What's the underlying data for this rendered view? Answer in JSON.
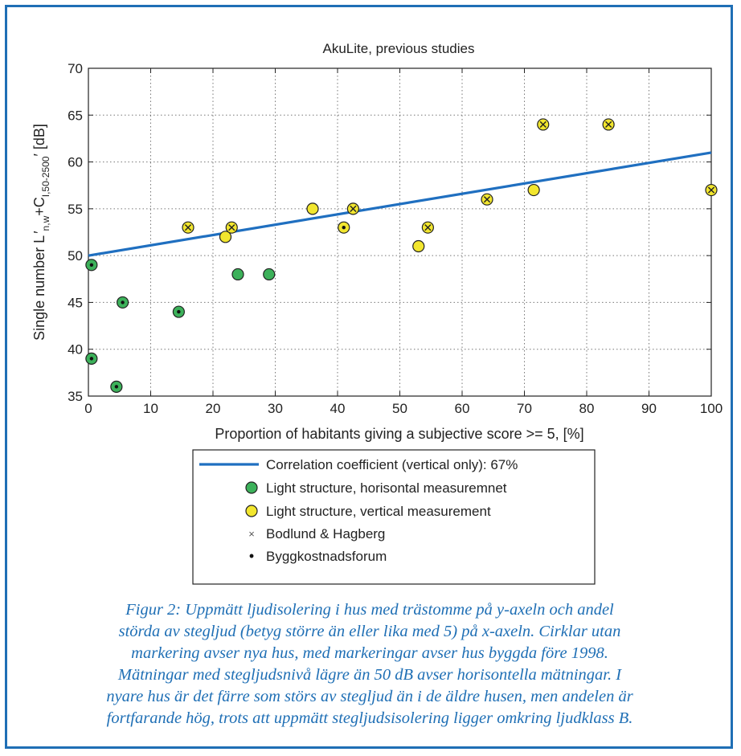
{
  "chart_data": {
    "type": "scatter",
    "title": "AkuLite, previous studies",
    "xlabel": "Proportion of habitants giving a subjective score >= 5, [%]",
    "ylabel_parts": [
      "Single number L",
      "n,w",
      "+C",
      "I,50-2500",
      " [dB]"
    ],
    "xlim": [
      0,
      100
    ],
    "ylim": [
      35,
      70
    ],
    "xticks": [
      "0",
      "10",
      "20",
      "30",
      "40",
      "50",
      "60",
      "70",
      "80",
      "90",
      "100"
    ],
    "yticks": [
      "35",
      "40",
      "45",
      "50",
      "55",
      "60",
      "65",
      "70"
    ],
    "grid": true,
    "legend_placement": "below-plot",
    "colors": {
      "line": "#1f6fc0",
      "green": "#3cb15a",
      "yellow": "#f2e62e",
      "marker_edge": "#222222"
    },
    "series": [
      {
        "name": "Correlation coefficient (vertical only): 67%",
        "kind": "line",
        "x": [
          0,
          100
        ],
        "y": [
          50,
          61
        ]
      },
      {
        "name": "Light structure, horisontal measuremnet",
        "kind": "marker",
        "color": "green",
        "x": [
          0.5,
          0.5,
          4.5,
          5.5,
          14.5,
          24,
          29
        ],
        "y": [
          49,
          39,
          36,
          45,
          44,
          48,
          48
        ]
      },
      {
        "name": "Light structure, vertical measurement",
        "kind": "marker",
        "color": "yellow",
        "x": [
          16,
          22,
          23,
          36,
          41,
          42.5,
          53,
          54.5,
          64,
          71.5,
          73,
          83.5,
          100
        ],
        "y": [
          53,
          52,
          53,
          55,
          53,
          55,
          51,
          53,
          56,
          57,
          64,
          64,
          57
        ]
      },
      {
        "name": "Bodlund & Hagberg",
        "kind": "inner-x",
        "symbol": "×",
        "x": [
          16,
          23,
          42.5,
          54.5,
          64,
          73,
          83.5,
          100
        ],
        "y": [
          53,
          53,
          55,
          53,
          56,
          64,
          64,
          57
        ]
      },
      {
        "name": "Byggkostnadsforum",
        "kind": "inner-dot",
        "symbol": "•",
        "x": [
          0.5,
          0.5,
          4.5,
          5.5,
          14.5,
          41
        ],
        "y": [
          49,
          39,
          36,
          45,
          44,
          53
        ]
      }
    ]
  },
  "caption": [
    "Figur 2: Uppmätt ljudisolering i hus med trästomme på y-axeln och andel",
    "störda av stegljud (betyg större än eller lika med 5) på x-axeln. Cirklar utan",
    "markering avser nya hus, med markeringar avser hus byggda före 1998.",
    "Mätningar med stegljudsnivå lägre än 50 dB avser horisontella mätningar. I",
    "nyare hus är det färre som störs av stegljud än i de äldre husen, men andelen är",
    "fortfarande hög, trots att uppmätt stegljudsisolering ligger omkring ljudklass B."
  ]
}
